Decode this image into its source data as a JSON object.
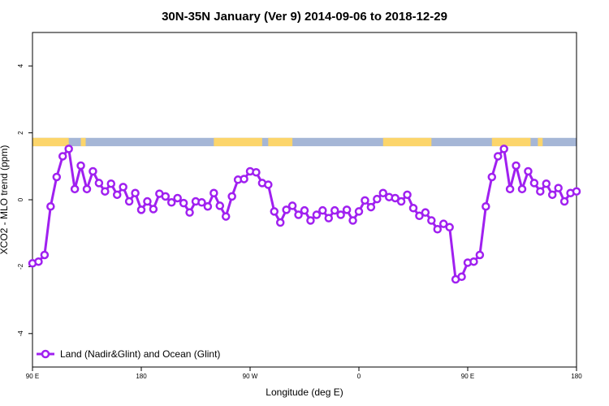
{
  "chart_data": {
    "type": "line",
    "title": "30N-35N January (Ver 9)   2014-09-06 to 2018-12-29",
    "xlabel": "Longitude (deg E)",
    "ylabel": "XCO2 - MLO trend (ppm)",
    "xlim": [
      90,
      540
    ],
    "ylim": [
      -5,
      5
    ],
    "x_ticks": [
      {
        "value": 90,
        "label": "90 E"
      },
      {
        "value": 180,
        "label": "180"
      },
      {
        "value": 270,
        "label": "90 W"
      },
      {
        "value": 360,
        "label": "0"
      },
      {
        "value": 450,
        "label": "90 E"
      },
      {
        "value": 540,
        "label": "180"
      }
    ],
    "y_ticks": [
      {
        "value": -4,
        "label": "-4"
      },
      {
        "value": -2,
        "label": "-2"
      },
      {
        "value": 0,
        "label": "0"
      },
      {
        "value": 2,
        "label": "2"
      },
      {
        "value": 4,
        "label": "4"
      }
    ],
    "legend_position": "bottom-left",
    "series": [
      {
        "name": "Land (Nadir&Glint) and Ocean (Glint)",
        "color": "#a020f0",
        "x": [
          90,
          95,
          100,
          105,
          110,
          115,
          120,
          125,
          130,
          135,
          140,
          145,
          150,
          155,
          160,
          165,
          170,
          175,
          180,
          185,
          190,
          195,
          200,
          205,
          210,
          215,
          220,
          225,
          230,
          235,
          240,
          245,
          250,
          255,
          260,
          265,
          270,
          275,
          280,
          285,
          290,
          295,
          300,
          305,
          310,
          315,
          320,
          325,
          330,
          335,
          340,
          345,
          350,
          355,
          360,
          365,
          370,
          375,
          380,
          385,
          390,
          395,
          400,
          405,
          410,
          415,
          420,
          425,
          430,
          435,
          440,
          445,
          450,
          455,
          460,
          465,
          470,
          475,
          480,
          485,
          490,
          495,
          500,
          505,
          510,
          515,
          520,
          525,
          530,
          535,
          540
        ],
        "values": [
          -1.9,
          -1.85,
          -1.65,
          -0.2,
          0.68,
          1.3,
          1.52,
          0.32,
          1.02,
          0.32,
          0.85,
          0.5,
          0.25,
          0.48,
          0.15,
          0.38,
          -0.05,
          0.2,
          -0.3,
          -0.05,
          -0.28,
          0.18,
          0.1,
          -0.08,
          0.05,
          -0.1,
          -0.38,
          -0.05,
          -0.08,
          -0.2,
          0.2,
          -0.18,
          -0.5,
          0.1,
          0.6,
          0.62,
          0.85,
          0.82,
          0.5,
          0.45,
          -0.35,
          -0.68,
          -0.3,
          -0.18,
          -0.45,
          -0.32,
          -0.62,
          -0.45,
          -0.32,
          -0.55,
          -0.32,
          -0.45,
          -0.3,
          -0.62,
          -0.35,
          -0.02,
          -0.22,
          0.02,
          0.2,
          0.08,
          0.05,
          -0.05,
          0.15,
          -0.25,
          -0.48,
          -0.38,
          -0.62,
          -0.88,
          -0.72,
          -0.82,
          -2.38,
          -2.3,
          -1.88,
          -1.85,
          -1.65,
          -0.2,
          0.68,
          1.3,
          1.52,
          0.32,
          1.02,
          0.32,
          0.85,
          0.5,
          0.25,
          0.48,
          0.15,
          0.35,
          -0.05,
          0.2,
          0.25
        ]
      }
    ],
    "land_ocean_band": {
      "y_range": [
        1.6,
        1.85
      ],
      "land_color": "#fcd56b",
      "ocean_color": "#a5b6d6",
      "land_segments": [
        [
          90,
          120
        ],
        [
          130,
          134
        ],
        [
          240,
          280
        ],
        [
          285,
          305
        ],
        [
          380,
          420
        ],
        [
          470,
          502
        ],
        [
          508,
          512
        ]
      ]
    }
  }
}
